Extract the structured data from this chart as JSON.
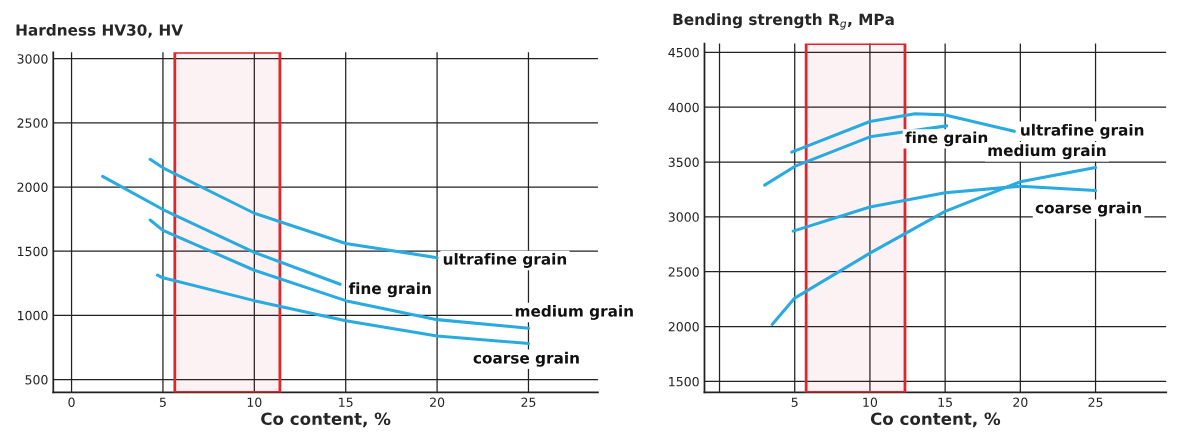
{
  "chart_data": [
    {
      "type": "line",
      "ylabel": "Hardness HV30, HV",
      "xlabel": "Co content, %",
      "xlim": [
        -1,
        28.8
      ],
      "ylim": [
        400,
        3050
      ],
      "xticks": [
        0,
        5,
        10,
        15,
        20,
        25
      ],
      "yticks": [
        500,
        1000,
        1500,
        2000,
        2500,
        3000
      ],
      "grid": true,
      "legend": false,
      "marker": "none",
      "line_style": "solid",
      "bands": [
        {
          "axis": "x",
          "from": 5.65,
          "to": 11.4,
          "color": "#e0262b"
        }
      ],
      "series": [
        {
          "name": "ultrafine grain",
          "color": "#29abe2",
          "x": [
            4.3,
            5,
            10,
            15,
            20
          ],
          "values": [
            2216,
            2150,
            1796,
            1560,
            1450
          ]
        },
        {
          "name": "fine grain",
          "color": "#29abe2",
          "x": [
            1.7,
            5,
            10,
            14.7
          ],
          "values": [
            2083,
            1825,
            1491,
            1243
          ]
        },
        {
          "name": "medium grain",
          "color": "#29abe2",
          "x": [
            4.3,
            5,
            10,
            15,
            20,
            25
          ],
          "values": [
            1743,
            1663,
            1352,
            1115,
            967,
            900
          ]
        },
        {
          "name": "coarse grain",
          "color": "#29abe2",
          "x": [
            4.7,
            5,
            10,
            15,
            20,
            25
          ],
          "values": [
            1314,
            1293,
            1115,
            959,
            840,
            781
          ]
        }
      ]
    },
    {
      "type": "line",
      "ylabel": "Bending strength R$_{g}$, MPa",
      "xlabel": "Co content, %",
      "xlim": [
        -1,
        29.7
      ],
      "ylim": [
        1400,
        4580
      ],
      "xticks": [
        {
          "value": 0,
          "label": null
        },
        5,
        10,
        15,
        20,
        25
      ],
      "yticks": [
        1500,
        2000,
        2500,
        3000,
        3500,
        4000,
        4500
      ],
      "grid": true,
      "legend": false,
      "marker": "none",
      "line_style": "solid",
      "bands": [
        {
          "axis": "x",
          "from": 5.76,
          "to": 12.33,
          "color": "#e0262b"
        }
      ],
      "series": [
        {
          "name": "ultrafine grain",
          "color": "#29abe2",
          "x": [
            4.8,
            10,
            13,
            15,
            19.6
          ],
          "values": [
            3590,
            3870,
            3940,
            3930,
            3780
          ]
        },
        {
          "name": "fine grain",
          "color": "#29abe2",
          "x": [
            3.0,
            5,
            10,
            15.1
          ],
          "values": [
            3290,
            3460,
            3730,
            3830
          ]
        },
        {
          "name": "medium grain",
          "color": "#29abe2",
          "x": [
            3.5,
            5,
            10,
            15,
            20,
            25
          ],
          "values": [
            2020,
            2260,
            2670,
            3050,
            3320,
            3450
          ]
        },
        {
          "name": "coarse grain",
          "color": "#29abe2",
          "x": [
            4.9,
            10,
            15,
            20,
            25
          ],
          "values": [
            2870,
            3090,
            3220,
            3280,
            3240
          ]
        }
      ]
    }
  ]
}
